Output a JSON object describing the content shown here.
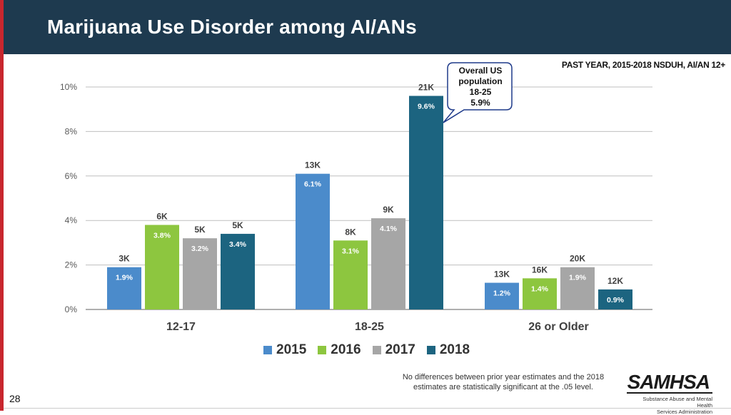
{
  "slide": {
    "title": "Marijuana Use Disorder among AI/ANs",
    "subtitle": "PAST YEAR, 2015-2018 NSDUH, AI/AN 12+",
    "page_number": "28",
    "footnote_line1": "No differences between prior year estimates and the 2018",
    "footnote_line2": "estimates are statistically significant at the .05 level.",
    "logo_name": "SAMHSA",
    "logo_sub_line1": "Substance Abuse and Mental Health",
    "logo_sub_line2": "Services Administration"
  },
  "callout": {
    "line1": "Overall US",
    "line2": "population",
    "line3": "18-25",
    "line4": "5.9%"
  },
  "chart_data": {
    "type": "bar",
    "title": "Marijuana Use Disorder among AI/ANs",
    "xlabel": "",
    "ylabel": "",
    "ylim": [
      0,
      10
    ],
    "yticks": [
      "0%",
      "2%",
      "4%",
      "6%",
      "8%",
      "10%"
    ],
    "ytick_values": [
      0,
      2,
      4,
      6,
      8,
      10
    ],
    "grid": true,
    "legend_position": "bottom",
    "categories": [
      "12-17",
      "18-25",
      "26 or Older"
    ],
    "series": [
      {
        "name": "2015",
        "color": "#4b8bcb",
        "values": [
          1.9,
          6.1,
          1.2
        ],
        "value_labels": [
          "1.9%",
          "6.1%",
          "1.2%"
        ],
        "count_labels": [
          "3K",
          "13K",
          "13K"
        ]
      },
      {
        "name": "2016",
        "color": "#8dc63f",
        "values": [
          3.8,
          3.1,
          1.4
        ],
        "value_labels": [
          "3.8%",
          "3.1%",
          "1.4%"
        ],
        "count_labels": [
          "6K",
          "8K",
          "16K"
        ]
      },
      {
        "name": "2017",
        "color": "#a6a6a6",
        "values": [
          3.2,
          4.1,
          1.9
        ],
        "value_labels": [
          "3.2%",
          "4.1%",
          "1.9%"
        ],
        "count_labels": [
          "5K",
          "9K",
          "20K"
        ]
      },
      {
        "name": "2018",
        "color": "#1c6480",
        "values": [
          3.4,
          9.6,
          0.9
        ],
        "value_labels": [
          "3.4%",
          "9.6%",
          "0.9%"
        ],
        "count_labels": [
          "5K",
          "21K",
          "12K"
        ]
      }
    ]
  }
}
